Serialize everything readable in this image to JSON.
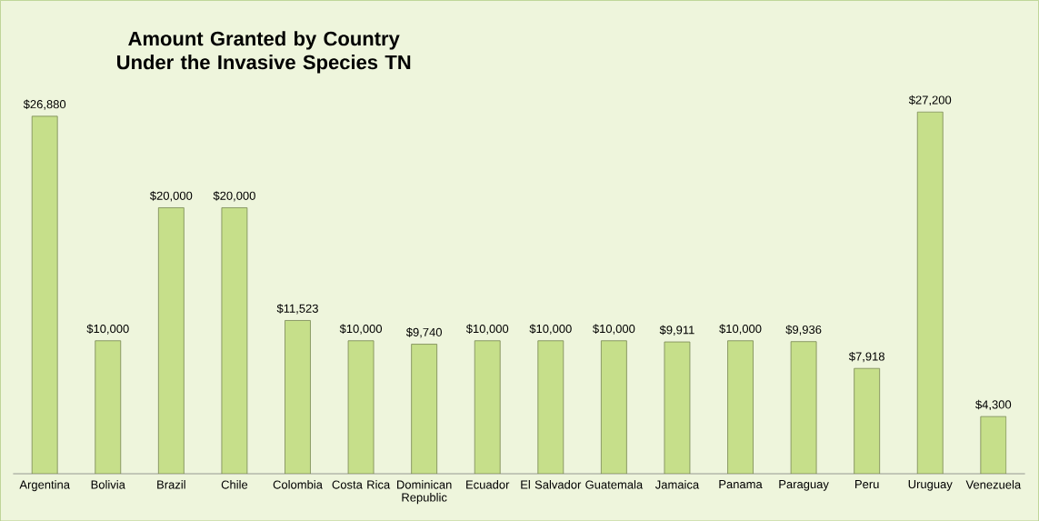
{
  "chart_data": {
    "type": "bar",
    "title": "Amount Granted by Country Under the Invasive Species TN",
    "categories": [
      "Argentina",
      "Bolivia",
      "Brazil",
      "Chile",
      "Colombia",
      "Costa Rica",
      "Dominican Republic",
      "Ecuador",
      "El Salvador",
      "Guatemala",
      "Jamaica",
      "Panama",
      "Paraguay",
      "Peru",
      "Uruguay",
      "Venezuela"
    ],
    "values": [
      26880,
      10000,
      20000,
      20000,
      11523,
      10000,
      9740,
      10000,
      10000,
      10000,
      9911,
      10000,
      9936,
      7918,
      27200,
      4300
    ],
    "value_labels": [
      "$26,880",
      "$10,000",
      "$20,000",
      "$20,000",
      "$11,523",
      "$10,000",
      "$9,740",
      "$10,000",
      "$10,000",
      "$10,000",
      "$9,911",
      "$10,000",
      "$9,936",
      "$7,918",
      "$27,200",
      "$4,300"
    ],
    "color": "#c6df8a"
  }
}
